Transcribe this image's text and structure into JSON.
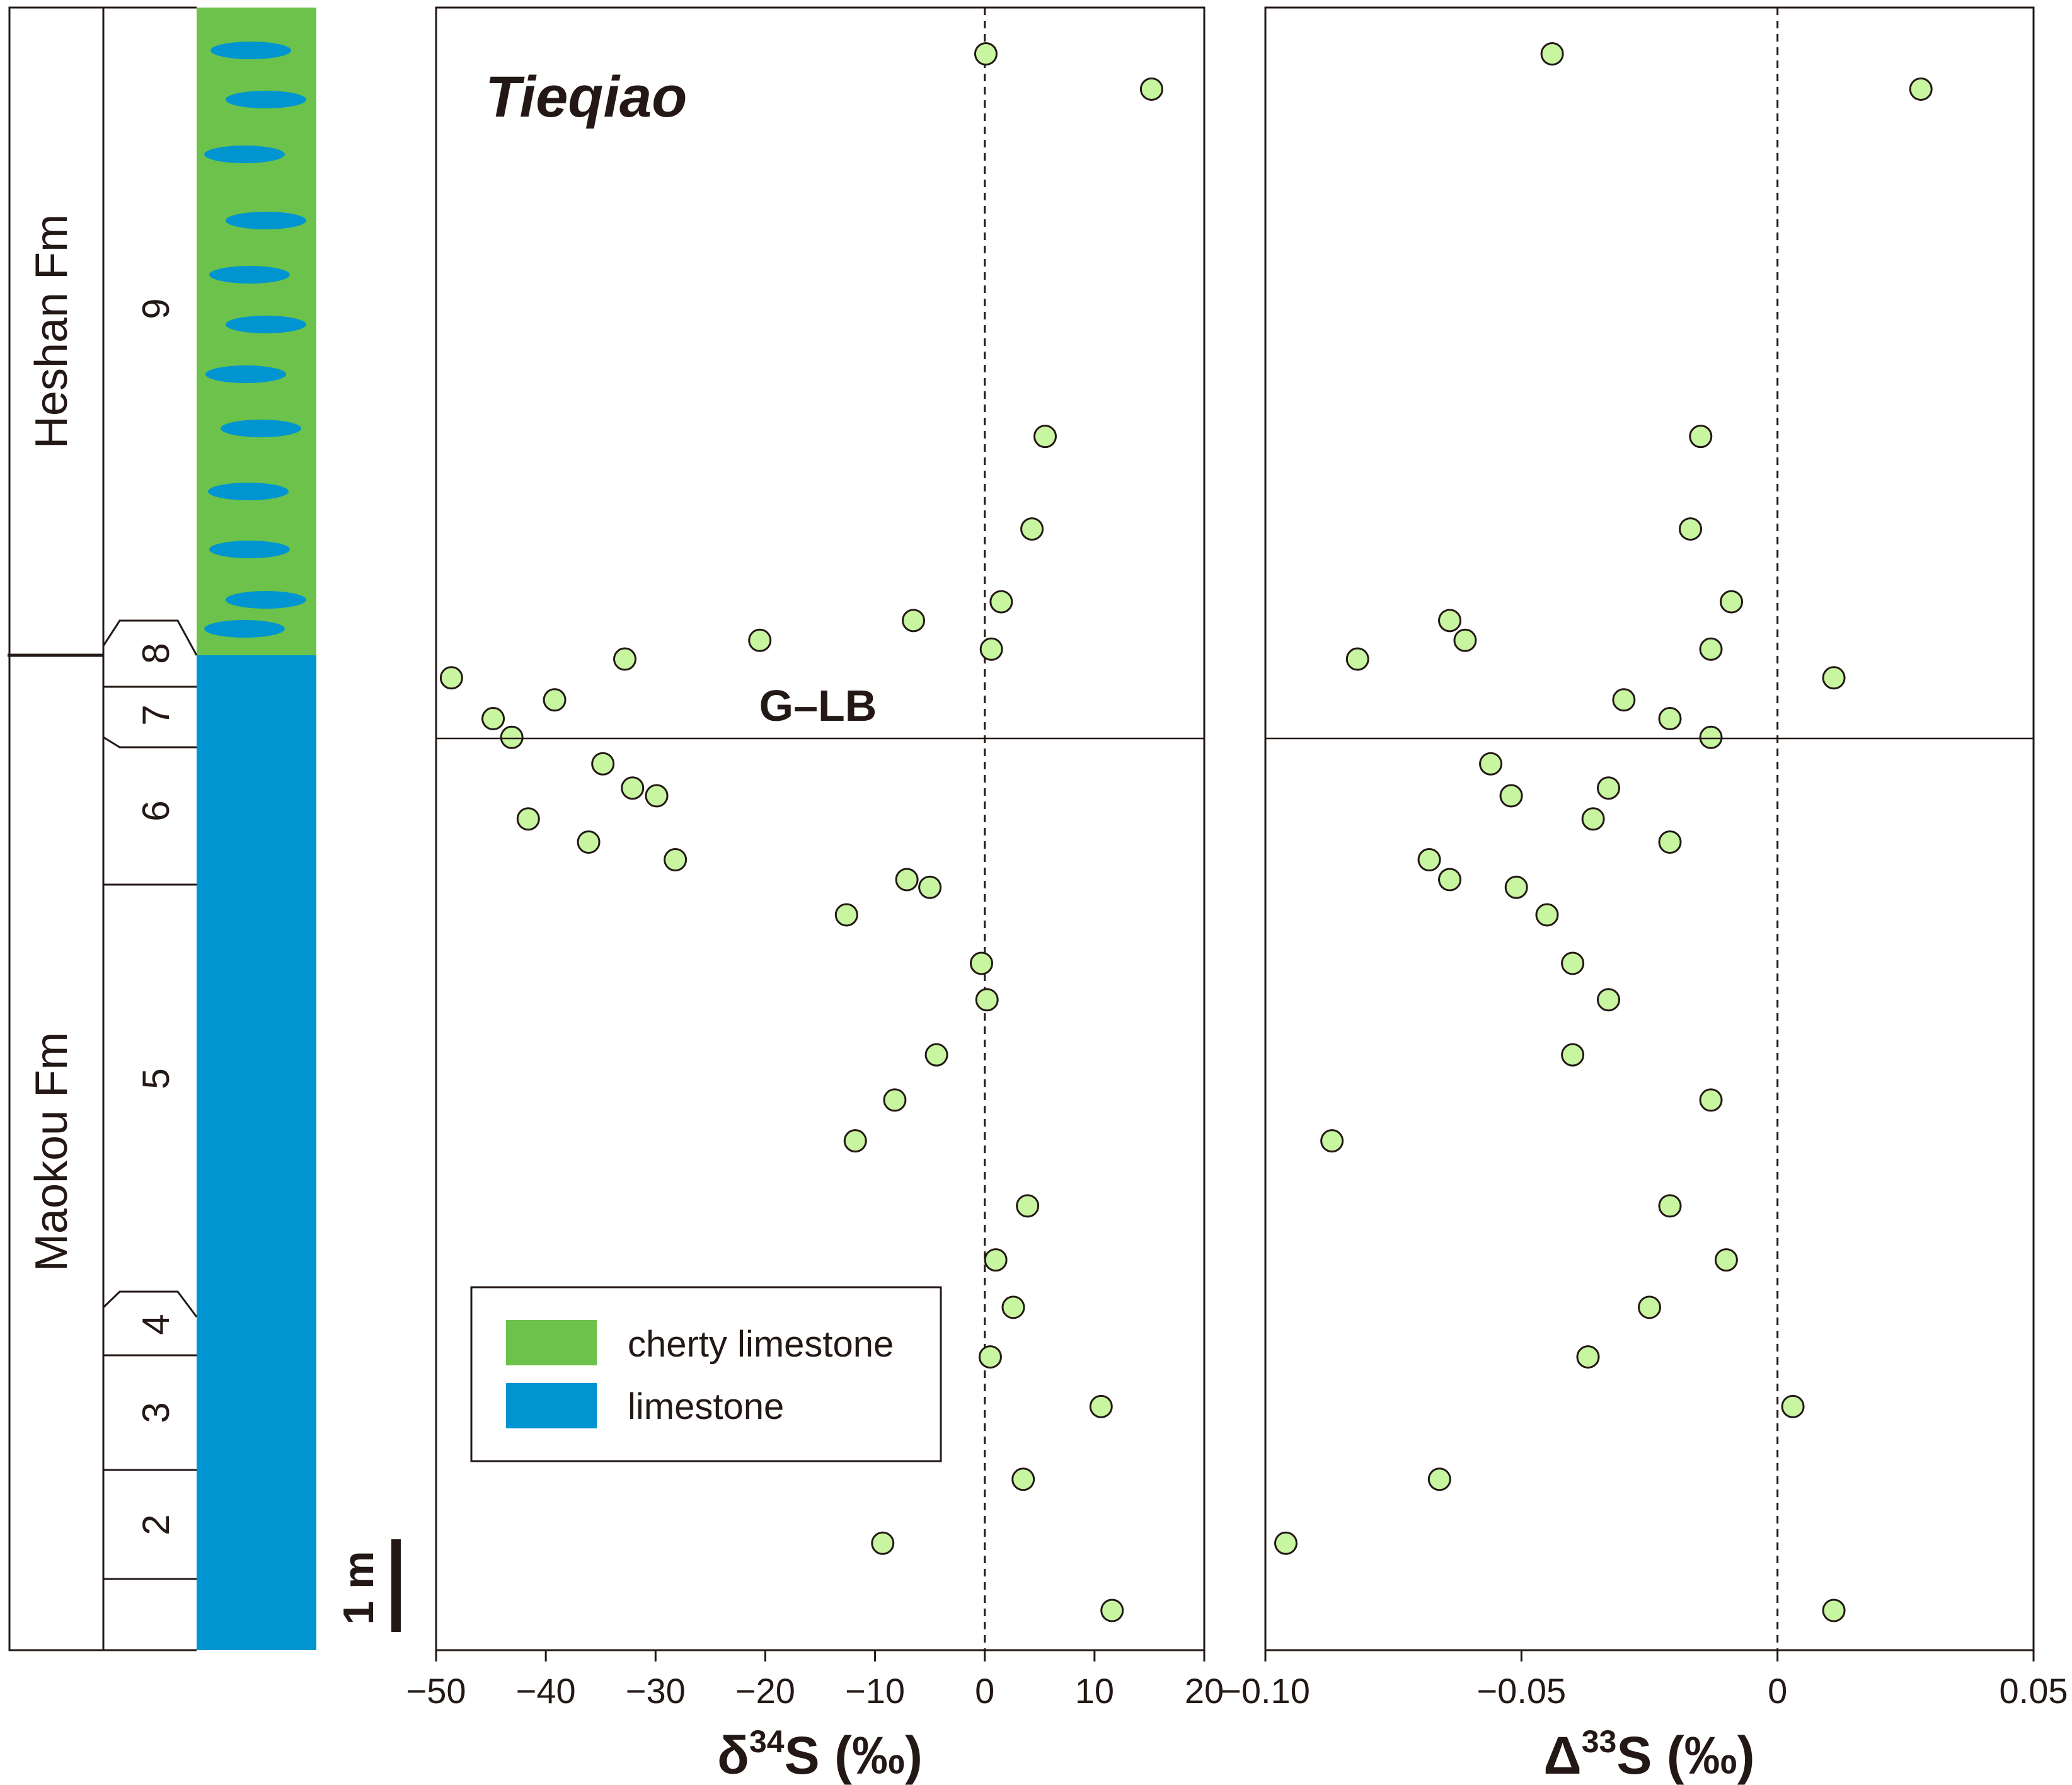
{
  "colors": {
    "cherty": "#6cc24a",
    "limestone": "#0095d0",
    "marker_fill": "#c8f5a0",
    "ink": "#231815"
  },
  "section": {
    "site_label": "Tieqiao",
    "boundary_label": "G–LB",
    "scale_label": "1 m",
    "formations": [
      {
        "name": "Heshan Fm",
        "key": "heshan"
      },
      {
        "name": "Maokou Fm",
        "key": "maokou"
      }
    ],
    "beds": [
      {
        "number": "9",
        "key": "9"
      },
      {
        "number": "8",
        "key": "8"
      },
      {
        "number": "7",
        "key": "7"
      },
      {
        "number": "6",
        "key": "6"
      },
      {
        "number": "5",
        "key": "5"
      },
      {
        "number": "4",
        "key": "4"
      },
      {
        "number": "3",
        "key": "3"
      },
      {
        "number": "2",
        "key": "2"
      }
    ],
    "legend": [
      {
        "label": "cherty limestone",
        "color": "#6cc24a"
      },
      {
        "label": "limestone",
        "color": "#0095d0"
      }
    ]
  },
  "chart_data": [
    {
      "type": "scatter",
      "title": "Tieqiao",
      "xlabel": "δ34S (‰)",
      "xlabel_main": "δ",
      "xlabel_sup": "34",
      "xlabel_tail": "S (‰)",
      "ylabel": "",
      "xlim": [
        -50,
        20
      ],
      "ylim": [
        0,
        14.9
      ],
      "y_units": "m above section base",
      "zero_line": 0,
      "ticks": [
        {
          "value": -50,
          "label": "−50"
        },
        {
          "value": -40,
          "label": "−40"
        },
        {
          "value": -30,
          "label": "−30"
        },
        {
          "value": -20,
          "label": "−20"
        },
        {
          "value": -10,
          "label": "−10"
        },
        {
          "value": 0,
          "label": "0"
        },
        {
          "value": 10,
          "label": "10"
        },
        {
          "value": 20,
          "label": "20"
        }
      ],
      "points": [
        {
          "x": 0.1,
          "y": 14.48
        },
        {
          "x": 15.2,
          "y": 14.16
        },
        {
          "x": 5.5,
          "y": 11.01
        },
        {
          "x": 4.3,
          "y": 10.17
        },
        {
          "x": 1.5,
          "y": 9.51
        },
        {
          "x": -6.5,
          "y": 9.34
        },
        {
          "x": -20.5,
          "y": 9.16
        },
        {
          "x": 0.6,
          "y": 9.08
        },
        {
          "x": -32.8,
          "y": 8.99
        },
        {
          "x": -48.6,
          "y": 8.82
        },
        {
          "x": -39.2,
          "y": 8.62
        },
        {
          "x": -44.8,
          "y": 8.45
        },
        {
          "x": -43.1,
          "y": 8.28
        },
        {
          "x": -34.8,
          "y": 8.04
        },
        {
          "x": -32.1,
          "y": 7.82
        },
        {
          "x": -29.9,
          "y": 7.75
        },
        {
          "x": -41.6,
          "y": 7.54
        },
        {
          "x": -36.1,
          "y": 7.33
        },
        {
          "x": -28.2,
          "y": 7.17
        },
        {
          "x": -7.1,
          "y": 6.99
        },
        {
          "x": -5.0,
          "y": 6.92
        },
        {
          "x": -12.6,
          "y": 6.67
        },
        {
          "x": -0.3,
          "y": 6.23
        },
        {
          "x": 0.2,
          "y": 5.9
        },
        {
          "x": -4.4,
          "y": 5.4
        },
        {
          "x": -8.2,
          "y": 4.99
        },
        {
          "x": -11.8,
          "y": 4.62
        },
        {
          "x": 3.9,
          "y": 4.03
        },
        {
          "x": 1.0,
          "y": 3.54
        },
        {
          "x": 2.6,
          "y": 3.11
        },
        {
          "x": 0.5,
          "y": 2.66
        },
        {
          "x": 10.6,
          "y": 2.21
        },
        {
          "x": 3.5,
          "y": 1.55
        },
        {
          "x": -9.3,
          "y": 0.97
        },
        {
          "x": 11.6,
          "y": 0.36
        }
      ]
    },
    {
      "type": "scatter",
      "title": "",
      "xlabel": "Δ33S (‰)",
      "xlabel_main": "Δ",
      "xlabel_sup": "33",
      "xlabel_tail": "S (‰)",
      "ylabel": "",
      "xlim": [
        -0.1,
        0.05
      ],
      "ylim": [
        0,
        14.9
      ],
      "y_units": "m above section base",
      "zero_line": 0,
      "ticks": [
        {
          "value": -0.1,
          "label": "−0.10"
        },
        {
          "value": -0.05,
          "label": "−0.05"
        },
        {
          "value": 0,
          "label": "0"
        },
        {
          "value": 0.05,
          "label": "0.05"
        }
      ],
      "points": [
        {
          "x": -0.044,
          "y": 14.48
        },
        {
          "x": 0.028,
          "y": 14.16
        },
        {
          "x": -0.015,
          "y": 11.01
        },
        {
          "x": -0.017,
          "y": 10.17
        },
        {
          "x": -0.009,
          "y": 9.51
        },
        {
          "x": -0.064,
          "y": 9.34
        },
        {
          "x": -0.061,
          "y": 9.16
        },
        {
          "x": -0.013,
          "y": 9.08
        },
        {
          "x": -0.082,
          "y": 8.99
        },
        {
          "x": 0.011,
          "y": 8.82
        },
        {
          "x": -0.03,
          "y": 8.62
        },
        {
          "x": -0.021,
          "y": 8.45
        },
        {
          "x": -0.013,
          "y": 8.28
        },
        {
          "x": -0.056,
          "y": 8.04
        },
        {
          "x": -0.033,
          "y": 7.82
        },
        {
          "x": -0.052,
          "y": 7.75
        },
        {
          "x": -0.036,
          "y": 7.54
        },
        {
          "x": -0.021,
          "y": 7.33
        },
        {
          "x": -0.068,
          "y": 7.17
        },
        {
          "x": -0.064,
          "y": 6.99
        },
        {
          "x": -0.051,
          "y": 6.92
        },
        {
          "x": -0.045,
          "y": 6.67
        },
        {
          "x": -0.04,
          "y": 6.23
        },
        {
          "x": -0.033,
          "y": 5.9
        },
        {
          "x": -0.04,
          "y": 5.4
        },
        {
          "x": -0.013,
          "y": 4.99
        },
        {
          "x": -0.087,
          "y": 4.62
        },
        {
          "x": -0.021,
          "y": 4.03
        },
        {
          "x": -0.01,
          "y": 3.54
        },
        {
          "x": -0.025,
          "y": 3.11
        },
        {
          "x": -0.037,
          "y": 2.66
        },
        {
          "x": 0.003,
          "y": 2.21
        },
        {
          "x": -0.066,
          "y": 1.55
        },
        {
          "x": -0.096,
          "y": 0.97
        },
        {
          "x": 0.011,
          "y": 0.36
        }
      ]
    }
  ]
}
